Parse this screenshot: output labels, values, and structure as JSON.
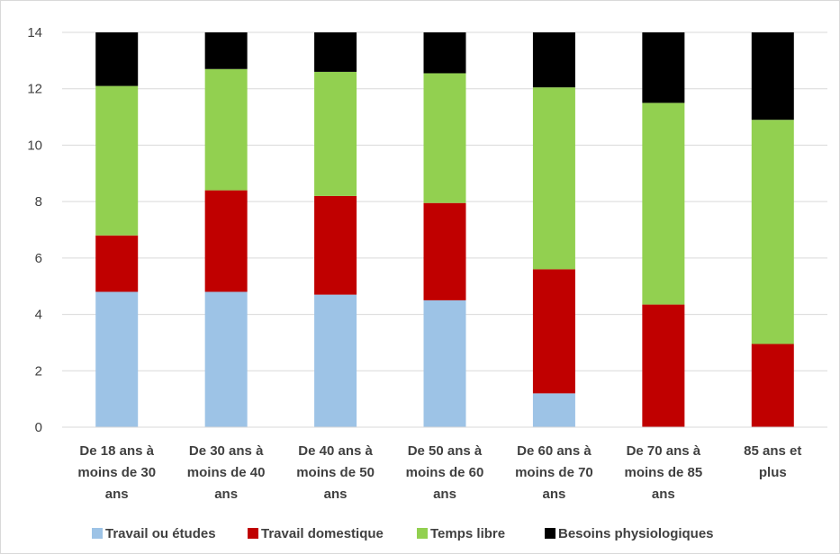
{
  "chart_data": {
    "type": "stacked-bar",
    "categories": [
      [
        "De 18 ans à",
        "moins de 30",
        "ans"
      ],
      [
        "De 30 ans à",
        "moins de 40",
        "ans"
      ],
      [
        "De 40 ans à",
        "moins de 50",
        "ans"
      ],
      [
        "De 50 ans à",
        "moins de 60",
        "ans"
      ],
      [
        "De 60 ans à",
        "moins de 70",
        "ans"
      ],
      [
        "De 70 ans à",
        "moins de 85",
        "ans"
      ],
      [
        "85 ans et",
        "plus"
      ]
    ],
    "series": [
      {
        "name": "Travail ou études",
        "color": "#9dc3e6",
        "values": [
          4.8,
          4.8,
          4.7,
          4.5,
          1.2,
          0.0,
          0.0
        ]
      },
      {
        "name": "Travail domestique",
        "color": "#c00000",
        "values": [
          2.0,
          3.6,
          3.5,
          3.45,
          4.4,
          4.35,
          2.95
        ]
      },
      {
        "name": "Temps libre",
        "color": "#92d050",
        "values": [
          5.3,
          4.3,
          4.4,
          4.6,
          6.45,
          7.15,
          7.95
        ]
      },
      {
        "name": "Besoins physiologiques",
        "color": "#000000",
        "values": [
          1.9,
          1.3,
          1.4,
          1.45,
          1.95,
          2.5,
          3.1
        ]
      }
    ],
    "ylim": [
      0,
      14
    ],
    "yticks": [
      "0",
      "2",
      "4",
      "6",
      "8",
      "10",
      "12",
      "14"
    ],
    "grid": true,
    "legend_position": "bottom",
    "title": "",
    "xlabel": "",
    "ylabel": ""
  }
}
